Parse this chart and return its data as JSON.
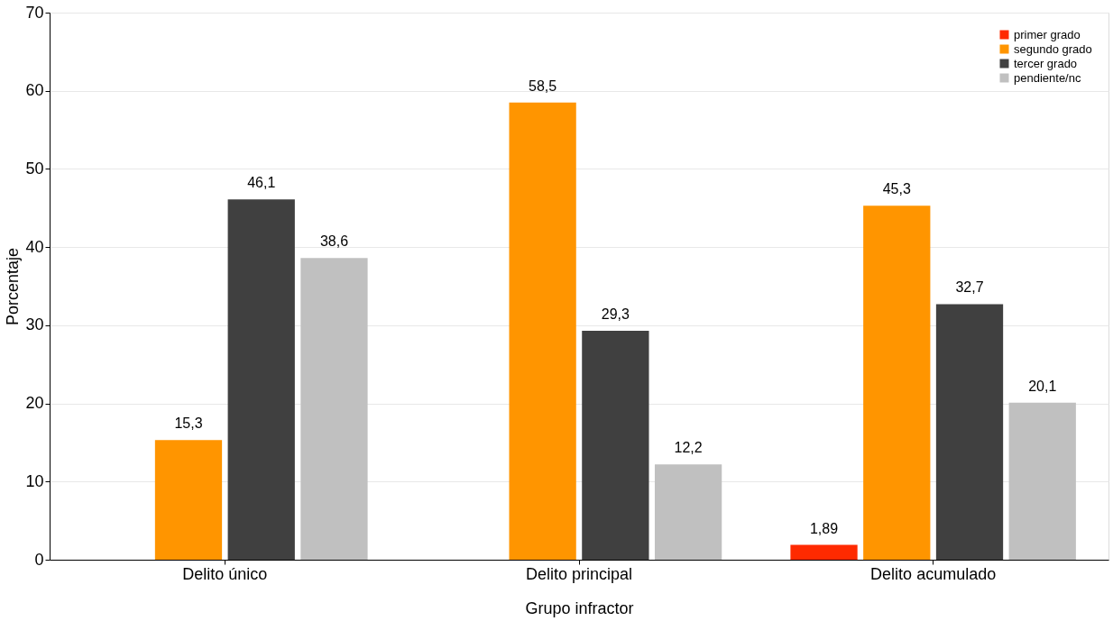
{
  "chart_data": {
    "type": "bar",
    "xlabel": "Grupo infractor",
    "ylabel": "Porcentaje",
    "categories": [
      "Delito único",
      "Delito principal",
      "Delito acumulado"
    ],
    "series": [
      {
        "name": "primer grado",
        "color": "#ff2a00",
        "values": [
          null,
          null,
          1.89
        ],
        "value_labels": [
          null,
          null,
          "1,89"
        ]
      },
      {
        "name": "segundo grado",
        "color": "#ff9500",
        "values": [
          15.3,
          58.5,
          45.3
        ],
        "value_labels": [
          "15,3",
          "58,5",
          "45,3"
        ]
      },
      {
        "name": "tercer grado",
        "color": "#404040",
        "values": [
          46.1,
          29.3,
          32.7
        ],
        "value_labels": [
          "46,1",
          "29,3",
          "32,7"
        ]
      },
      {
        "name": "pendiente/nc",
        "color": "#c0c0c0",
        "values": [
          38.6,
          12.2,
          20.1
        ],
        "value_labels": [
          "38,6",
          "12,2",
          "20,1"
        ]
      }
    ],
    "ylim": [
      0,
      70
    ],
    "yticks": [
      0,
      10,
      20,
      30,
      40,
      50,
      60,
      70
    ],
    "grid": "y",
    "legend": "top right"
  }
}
